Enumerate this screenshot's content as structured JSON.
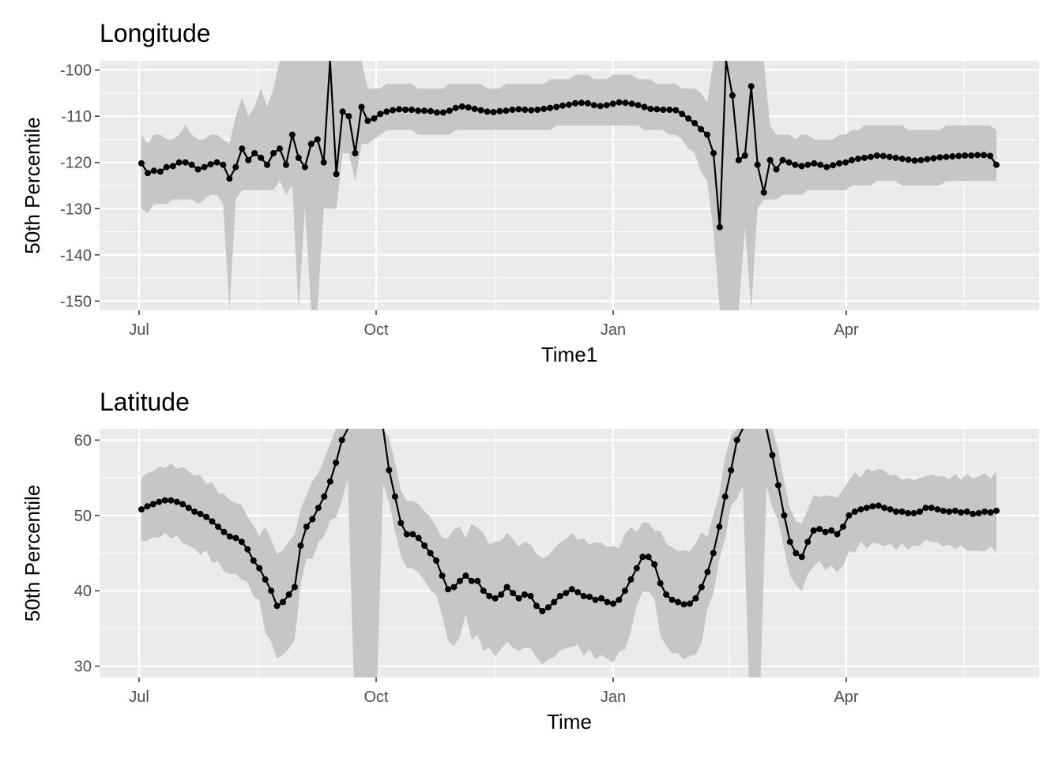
{
  "chart_data": [
    {
      "type": "line",
      "title": "Longitude",
      "xlabel": "Time1",
      "ylabel": "50th Percentile",
      "x_ticks": [
        "Jul",
        "Oct",
        "Jan",
        "Apr"
      ],
      "y_ticks": [
        -100,
        -110,
        -120,
        -130,
        -140,
        -150
      ],
      "ylim": [
        -152,
        -98
      ],
      "grid": true,
      "legend": "none",
      "colors": {
        "panel": "#ebebeb",
        "grid": "#ffffff",
        "band": "#c6c6c6",
        "line": "#000000"
      },
      "series": [
        {
          "values": [
            -120.2,
            -122.3,
            -121.8,
            -122.0,
            -121.0,
            -120.8,
            -120.0,
            -120.0,
            -120.5,
            -121.5,
            -121.0,
            -120.4,
            -120.0,
            -120.5,
            -123.5,
            -121.0,
            -117.0,
            -119.5,
            -118.0,
            -119.0,
            -120.5,
            -118.0,
            -117.0,
            -120.5,
            -114.0,
            -119.0,
            -121.0,
            -116.0,
            -115.0,
            -120.0,
            -98.0,
            -122.5,
            -109.0,
            -110.0,
            -118.0,
            -108.0,
            -111.0,
            -110.5,
            -109.5,
            -109.0,
            -108.7,
            -108.5,
            -108.6,
            -108.6,
            -108.8,
            -108.8,
            -108.9,
            -109.2,
            -109.2,
            -108.8,
            -108.2,
            -107.9,
            -108.1,
            -108.4,
            -108.7,
            -109.0,
            -109.1,
            -108.9,
            -108.8,
            -108.6,
            -108.5,
            -108.6,
            -108.7,
            -108.6,
            -108.4,
            -108.2,
            -108.0,
            -107.7,
            -107.5,
            -107.2,
            -107.1,
            -107.2,
            -107.6,
            -107.8,
            -107.6,
            -107.3,
            -107.0,
            -107.1,
            -107.3,
            -107.6,
            -108.0,
            -108.4,
            -108.5,
            -108.6,
            -108.6,
            -108.7,
            -109.5,
            -110.5,
            -111.5,
            -112.8,
            -114.0,
            -118.0,
            -134.0,
            -98.0,
            -105.5,
            -119.5,
            -118.5,
            -103.5,
            -120.5,
            -126.5,
            -119.5,
            -121.5,
            -119.5,
            -120.0,
            -120.5,
            -120.8,
            -120.5,
            -120.2,
            -120.5,
            -121.0,
            -120.6,
            -120.2,
            -120.0,
            -119.5,
            -119.2,
            -119.0,
            -118.8,
            -118.5,
            -118.6,
            -118.8,
            -119.0,
            -119.2,
            -119.4,
            -119.6,
            -119.5,
            -119.3,
            -119.1,
            -118.9,
            -118.8,
            -118.7,
            -118.6,
            -118.5,
            -118.5,
            -118.4,
            -118.4,
            -118.6,
            -120.5
          ],
          "lower": [
            -130,
            -131,
            -129,
            -129,
            -129,
            -128,
            -128,
            -128,
            -128,
            -129,
            -128,
            -127,
            -127,
            -129,
            -152,
            -128,
            -126,
            -126,
            -126,
            -126,
            -126,
            -126,
            -124,
            -127,
            -125,
            -152,
            -130,
            -152,
            -152,
            -130,
            -130,
            -130,
            -118,
            -118,
            -124,
            -116,
            -116,
            -115,
            -114,
            -113,
            -113,
            -113,
            -113,
            -113,
            -114,
            -114,
            -114,
            -114,
            -114,
            -114,
            -113,
            -113,
            -113,
            -113,
            -113,
            -113,
            -113,
            -113,
            -113,
            -113,
            -113,
            -113,
            -113,
            -113,
            -113,
            -113,
            -112,
            -112,
            -112,
            -112,
            -112,
            -112,
            -112,
            -112,
            -112,
            -112,
            -112,
            -112,
            -112,
            -112,
            -113,
            -113,
            -113,
            -113,
            -114,
            -114,
            -115,
            -117,
            -118,
            -122,
            -124,
            -135,
            -152,
            -152,
            -152,
            -152,
            -134,
            -152,
            -130,
            -128,
            -128,
            -128,
            -127,
            -127,
            -127,
            -127,
            -126,
            -126,
            -126,
            -126,
            -126,
            -126,
            -126,
            -125,
            -125,
            -125,
            -125,
            -124,
            -124,
            -124,
            -124,
            -125,
            -125,
            -125,
            -125,
            -125,
            -125,
            -125,
            -124,
            -124,
            -124,
            -124,
            -124,
            -124,
            -124,
            -124,
            -124
          ],
          "upper": [
            -114,
            -116,
            -114,
            -114,
            -115,
            -115,
            -114,
            -112,
            -114,
            -115,
            -115,
            -114,
            -114,
            -115,
            -116,
            -110,
            -106,
            -110,
            -108,
            -104,
            -108,
            -104,
            -98,
            -98,
            -98,
            -98,
            -98,
            -98,
            -98,
            -98,
            -98,
            -98,
            -98,
            -98,
            -98,
            -98,
            -104,
            -104,
            -104,
            -103,
            -103,
            -103,
            -103,
            -103,
            -104,
            -104,
            -104,
            -104,
            -104,
            -103,
            -103,
            -103,
            -103,
            -103,
            -103,
            -104,
            -104,
            -104,
            -103,
            -103,
            -103,
            -103,
            -103,
            -103,
            -103,
            -102,
            -102,
            -102,
            -102,
            -101,
            -101,
            -101,
            -102,
            -102,
            -102,
            -101,
            -101,
            -101,
            -101,
            -102,
            -102,
            -102,
            -103,
            -103,
            -103,
            -103,
            -104,
            -104,
            -104,
            -105,
            -107,
            -98,
            -98,
            -98,
            -98,
            -98,
            -98,
            -98,
            -98,
            -98,
            -112,
            -114,
            -114,
            -114,
            -115,
            -114,
            -114,
            -115,
            -115,
            -115,
            -115,
            -114,
            -114,
            -113,
            -113,
            -112,
            -112,
            -112,
            -112,
            -112,
            -112,
            -112,
            -113,
            -113,
            -113,
            -113,
            -113,
            -113,
            -112,
            -112,
            -112,
            -112,
            -112,
            -112,
            -112,
            -112,
            -113
          ]
        }
      ]
    },
    {
      "type": "line",
      "title": "Latitude",
      "xlabel": "Time",
      "ylabel": "50th Percentile",
      "x_ticks": [
        "Jul",
        "Oct",
        "Jan",
        "Apr"
      ],
      "y_ticks": [
        60,
        50,
        40,
        30
      ],
      "ylim": [
        28.5,
        61.5
      ],
      "grid": true,
      "legend": "none",
      "colors": {
        "panel": "#ebebeb",
        "grid": "#ffffff",
        "band": "#c6c6c6",
        "line": "#000000"
      },
      "series": [
        {
          "values": [
            50.8,
            51.2,
            51.5,
            51.8,
            52.0,
            52.0,
            51.8,
            51.5,
            51.0,
            50.5,
            50.2,
            49.8,
            49.2,
            48.5,
            47.8,
            47.2,
            47.0,
            46.5,
            45.5,
            44.0,
            43.0,
            41.5,
            40.0,
            38.0,
            38.5,
            39.5,
            40.5,
            46.0,
            48.5,
            49.5,
            51.0,
            52.5,
            54.5,
            57.0,
            60.0,
            61.5,
            null,
            null,
            null,
            null,
            null,
            61.5,
            56.0,
            52.5,
            49.0,
            47.5,
            47.5,
            47.0,
            46.0,
            45.0,
            44.0,
            42.0,
            40.2,
            40.5,
            41.3,
            42.0,
            41.3,
            41.3,
            40.0,
            39.3,
            39.0,
            39.5,
            40.5,
            39.7,
            39.0,
            39.5,
            39.3,
            38.0,
            37.3,
            37.8,
            38.5,
            39.3,
            39.7,
            40.2,
            39.8,
            39.3,
            39.2,
            38.8,
            39.0,
            38.5,
            38.3,
            38.8,
            40.0,
            41.5,
            43.0,
            44.5,
            44.5,
            43.5,
            41.0,
            39.5,
            38.8,
            38.5,
            38.2,
            38.3,
            39.0,
            40.5,
            42.5,
            45.0,
            48.5,
            52.5,
            56.0,
            60.0,
            61.5,
            null,
            null,
            null,
            61.5,
            58.0,
            54.0,
            50.0,
            46.5,
            45.0,
            44.5,
            46.5,
            48.0,
            48.2,
            47.8,
            48.0,
            47.5,
            48.5,
            50.0,
            50.5,
            50.8,
            51.0,
            51.2,
            51.3,
            51.0,
            50.8,
            50.5,
            50.5,
            50.3,
            50.3,
            50.5,
            51.0,
            51.0,
            50.8,
            50.6,
            50.5,
            50.6,
            50.4,
            50.5,
            50.2,
            50.3,
            50.5,
            50.4,
            50.6
          ]
        }
      ]
    }
  ]
}
